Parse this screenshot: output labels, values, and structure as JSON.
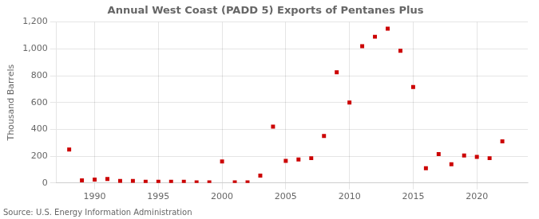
{
  "chart_data": {
    "type": "scatter",
    "title": "Annual West Coast (PADD 5) Exports of Pentanes Plus",
    "ylabel": "Thousand Barrels",
    "annotations": [
      "Source: U.S. Energy Information Administration"
    ],
    "x": [
      1988,
      1989,
      1990,
      1991,
      1992,
      1993,
      1994,
      1995,
      1996,
      1997,
      1998,
      1999,
      2000,
      2001,
      2002,
      2003,
      2004,
      2005,
      2006,
      2007,
      2008,
      2009,
      2010,
      2011,
      2012,
      2013,
      2014,
      2015,
      2016,
      2017,
      2018,
      2019,
      2020,
      2021,
      2022
    ],
    "values": [
      250,
      20,
      25,
      30,
      15,
      15,
      10,
      10,
      10,
      10,
      5,
      5,
      160,
      5,
      5,
      55,
      420,
      165,
      175,
      185,
      350,
      825,
      600,
      1020,
      1090,
      1150,
      985,
      715,
      110,
      215,
      140,
      205,
      195,
      185,
      310
    ],
    "color": "#cc0000",
    "marker": "square",
    "xlim": [
      1987,
      2024
    ],
    "xticks": [
      1990,
      1995,
      2000,
      2005,
      2010,
      2015,
      2020
    ],
    "ylim": [
      0,
      1200
    ],
    "yticks": [
      0,
      200,
      400,
      600,
      800,
      {
        "value": 1000,
        "label": "1,000"
      },
      {
        "value": 1200,
        "label": "1,200"
      }
    ],
    "grid": true
  }
}
